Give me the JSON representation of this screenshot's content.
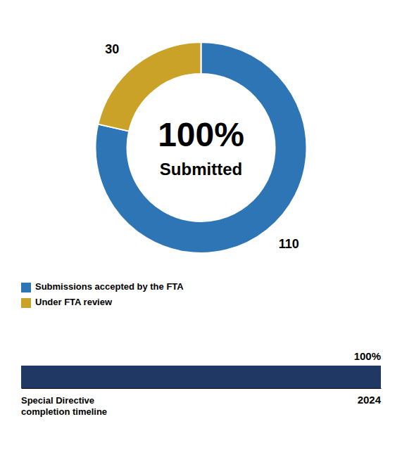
{
  "chart_data": [
    {
      "type": "donut",
      "categories": [
        "Submissions accepted by the FTA",
        "Under FTA review"
      ],
      "values": [
        110,
        30
      ],
      "colors": [
        "#2E75B6",
        "#C9A227"
      ],
      "data_labels": true,
      "legend": "bottom",
      "annotations": [
        "100%",
        "Submitted"
      ]
    },
    {
      "type": "bar",
      "orientation": "horizontal",
      "values": [
        100
      ],
      "value_labels": [
        "100%"
      ],
      "data_labels": true,
      "color": "#1F3864",
      "xlim": [
        0,
        100
      ],
      "tick_labels": false,
      "annotations": [
        "Special Directive\ncompletion timeline",
        "2024"
      ]
    }
  ]
}
